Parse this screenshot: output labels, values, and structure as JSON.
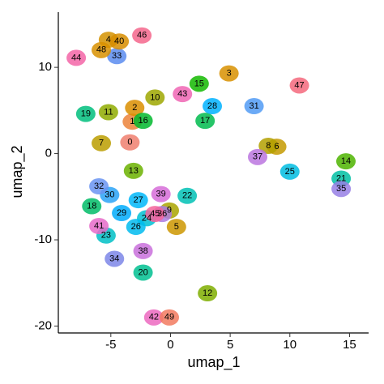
{
  "chart_data": {
    "type": "scatter",
    "xlabel": "umap_1",
    "ylabel": "umap_2",
    "xlim": [
      -9.4,
      16.6
    ],
    "ylim": [
      -20.8,
      16.4
    ],
    "xticks": [
      -5,
      0,
      5,
      10,
      15
    ],
    "yticks": [
      -20,
      -10,
      0,
      10
    ],
    "series": [
      {
        "name": "0",
        "color": "#f07f6e",
        "x": [
          -3.4
        ],
        "values": [
          1.3
        ]
      },
      {
        "name": "1",
        "color": "#ec8239",
        "x": [
          -3.2
        ],
        "values": [
          3.7
        ]
      },
      {
        "name": "2",
        "color": "#db8e00",
        "x": [
          -3.0
        ],
        "values": [
          5.3
        ]
      },
      {
        "name": "3",
        "color": "#d89000",
        "x": [
          4.9
        ],
        "values": [
          9.3
        ]
      },
      {
        "name": "4",
        "color": "#d39200",
        "x": [
          -5.2
        ],
        "values": [
          13.2
        ]
      },
      {
        "name": "5",
        "color": "#cd9600",
        "x": [
          0.5
        ],
        "values": [
          -8.5
        ]
      },
      {
        "name": "6",
        "color": "#c49a00",
        "x": [
          8.9
        ],
        "values": [
          0.8
        ]
      },
      {
        "name": "7",
        "color": "#bb9d00",
        "x": [
          -5.8
        ],
        "values": [
          1.2
        ]
      },
      {
        "name": "8",
        "color": "#b3a000",
        "x": [
          8.2
        ],
        "values": [
          0.9
        ]
      },
      {
        "name": "9",
        "color": "#a9a400",
        "x": [
          -0.1
        ],
        "values": [
          -6.6
        ]
      },
      {
        "name": "10",
        "color": "#9da700",
        "x": [
          -1.3
        ],
        "values": [
          6.5
        ]
      },
      {
        "name": "11",
        "color": "#8fab00",
        "x": [
          -5.2
        ],
        "values": [
          4.8
        ]
      },
      {
        "name": "12",
        "color": "#7fae00",
        "x": [
          3.1
        ],
        "values": [
          -16.2
        ]
      },
      {
        "name": "13",
        "color": "#6bb100",
        "x": [
          -3.1
        ],
        "values": [
          -2.0
        ]
      },
      {
        "name": "14",
        "color": "#4db400",
        "x": [
          14.7
        ],
        "values": [
          -0.9
        ]
      },
      {
        "name": "15",
        "color": "#13b800",
        "x": [
          2.4
        ],
        "values": [
          8.1
        ]
      },
      {
        "name": "16",
        "color": "#00b92d",
        "x": [
          -2.3
        ],
        "values": [
          3.8
        ]
      },
      {
        "name": "17",
        "color": "#00bb4e",
        "x": [
          2.9
        ],
        "values": [
          3.8
        ]
      },
      {
        "name": "18",
        "color": "#00bc67",
        "x": [
          -6.6
        ],
        "values": [
          -6.1
        ]
      },
      {
        "name": "19",
        "color": "#00be7d",
        "x": [
          -7.1
        ],
        "values": [
          4.6
        ]
      },
      {
        "name": "20",
        "color": "#00bf91",
        "x": [
          -2.3
        ],
        "values": [
          -13.8
        ]
      },
      {
        "name": "21",
        "color": "#00c0a3",
        "x": [
          14.3
        ],
        "values": [
          -2.9
        ]
      },
      {
        "name": "22",
        "color": "#00c1b5",
        "x": [
          1.4
        ],
        "values": [
          -4.9
        ]
      },
      {
        "name": "23",
        "color": "#00c0c5",
        "x": [
          -5.4
        ],
        "values": [
          -9.5
        ]
      },
      {
        "name": "24",
        "color": "#00bfd4",
        "x": [
          -2.0
        ],
        "values": [
          -7.5
        ]
      },
      {
        "name": "25",
        "color": "#00bde2",
        "x": [
          10.0
        ],
        "values": [
          -2.1
        ]
      },
      {
        "name": "26",
        "color": "#00bbee",
        "x": [
          -2.9
        ],
        "values": [
          -8.5
        ]
      },
      {
        "name": "27",
        "color": "#00b7f9",
        "x": [
          -2.7
        ],
        "values": [
          -5.4
        ]
      },
      {
        "name": "28",
        "color": "#00b2ff",
        "x": [
          3.5
        ],
        "values": [
          5.5
        ]
      },
      {
        "name": "29",
        "color": "#00acfc",
        "x": [
          -4.1
        ],
        "values": [
          -6.9
        ]
      },
      {
        "name": "30",
        "color": "#2aa3f7",
        "x": [
          -5.1
        ],
        "values": [
          -4.8
        ]
      },
      {
        "name": "31",
        "color": "#519bf4",
        "x": [
          7.0
        ],
        "values": [
          5.5
        ]
      },
      {
        "name": "32",
        "color": "#6a94f2",
        "x": [
          -6.0
        ],
        "values": [
          -3.8
        ]
      },
      {
        "name": "33",
        "color": "#5b8cf0",
        "x": [
          -4.5
        ],
        "values": [
          11.3
        ]
      },
      {
        "name": "34",
        "color": "#7d86e8",
        "x": [
          -4.7
        ],
        "values": [
          -12.2
        ]
      },
      {
        "name": "35",
        "color": "#977fe5",
        "x": [
          14.3
        ],
        "values": [
          -4.1
        ]
      },
      {
        "name": "36",
        "color": "#ab7ae2",
        "x": [
          -0.7
        ],
        "values": [
          -7.0
        ]
      },
      {
        "name": "37",
        "color": "#bb75df",
        "x": [
          7.3
        ],
        "values": [
          -0.4
        ]
      },
      {
        "name": "38",
        "color": "#c970dc",
        "x": [
          -2.3
        ],
        "values": [
          -11.3
        ]
      },
      {
        "name": "39",
        "color": "#d66cd8",
        "x": [
          -0.8
        ],
        "values": [
          -4.7
        ]
      },
      {
        "name": "40",
        "color": "#d78d00",
        "x": [
          -4.3
        ],
        "values": [
          13.0
        ]
      },
      {
        "name": "41",
        "color": "#e66bc9",
        "x": [
          -6.0
        ],
        "values": [
          -8.4
        ]
      },
      {
        "name": "42",
        "color": "#ec69bf",
        "x": [
          -1.4
        ],
        "values": [
          -19.0
        ]
      },
      {
        "name": "43",
        "color": "#f066b4",
        "x": [
          1.0
        ],
        "values": [
          6.9
        ]
      },
      {
        "name": "44",
        "color": "#f365a7",
        "x": [
          -7.9
        ],
        "values": [
          11.1
        ]
      },
      {
        "name": "45",
        "color": "#f5649a",
        "x": [
          -1.3
        ],
        "values": [
          -7.0
        ]
      },
      {
        "name": "46",
        "color": "#f5668c",
        "x": [
          -2.4
        ],
        "values": [
          13.7
        ]
      },
      {
        "name": "47",
        "color": "#f4687d",
        "x": [
          10.8
        ],
        "values": [
          7.9
        ]
      },
      {
        "name": "48",
        "color": "#d89000",
        "x": [
          -5.8
        ],
        "values": [
          12.0
        ]
      },
      {
        "name": "49",
        "color": "#f27a5f",
        "x": [
          -0.1
        ],
        "values": [
          -19.0
        ]
      }
    ]
  }
}
